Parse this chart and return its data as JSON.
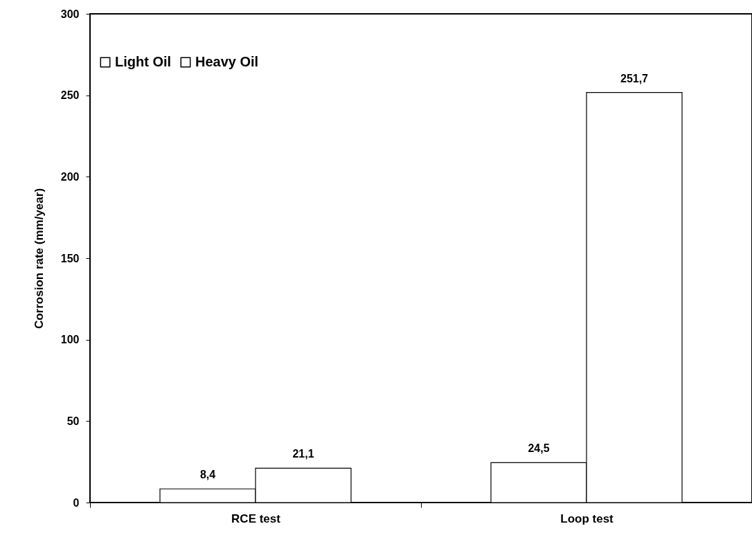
{
  "chart_data": {
    "type": "bar",
    "ylabel": "Corrosion rate  (mm/year)",
    "categories": [
      "RCE test",
      "Loop test"
    ],
    "series": [
      {
        "name": "Light Oil",
        "color": "#ffffff",
        "values": [
          8.4,
          24.5
        ],
        "value_labels": [
          "8,4",
          "24,5"
        ]
      },
      {
        "name": "Heavy Oil",
        "color": "#ffffff",
        "values": [
          21.1,
          251.7
        ],
        "value_labels": [
          "21,1",
          "251,7"
        ]
      }
    ],
    "ylim": [
      0,
      300
    ],
    "yticks": [
      0,
      50,
      100,
      150,
      200,
      250,
      300
    ],
    "legend": "top left"
  }
}
